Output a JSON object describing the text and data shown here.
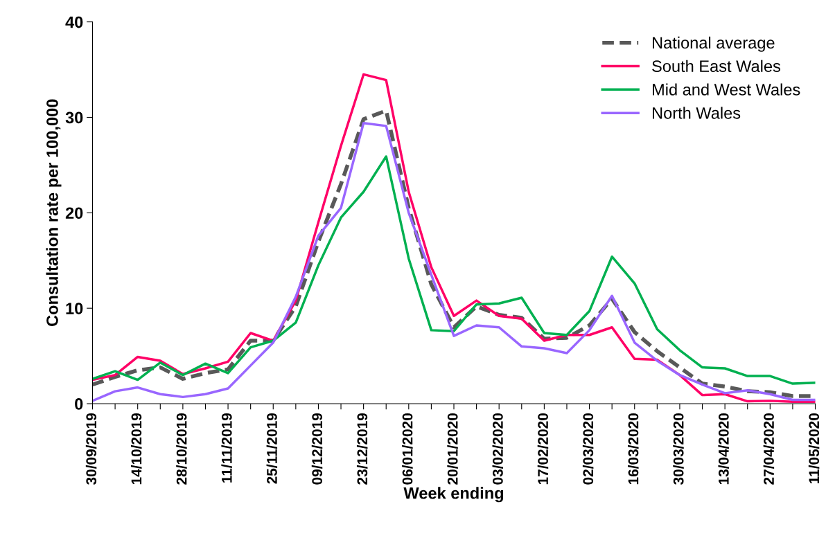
{
  "chart_data": {
    "type": "line",
    "xlabel": "Week ending",
    "ylabel": "Consultation rate per 100,000",
    "categories": [
      "30/09/2019",
      null,
      "14/10/2019",
      null,
      "28/10/2019",
      null,
      "11/11/2019",
      null,
      "25/11/2019",
      null,
      "09/12/2019",
      null,
      "23/12/2019",
      null,
      "06/01/2020",
      null,
      "20/01/2020",
      null,
      "03/02/2020",
      null,
      "17/02/2020",
      null,
      "02/03/2020",
      null,
      "16/03/2020",
      null,
      "30/03/2020",
      null,
      "13/04/2020",
      null,
      "27/04/2020",
      null,
      "11/05/2020"
    ],
    "series": [
      {
        "name": "National average",
        "color": "#595959",
        "line_style": "dashed",
        "values": [
          2.0,
          2.8,
          3.5,
          3.8,
          2.6,
          3.2,
          3.6,
          6.6,
          6.6,
          10.2,
          17,
          23,
          29.8,
          30.7,
          20.5,
          12.5,
          8,
          10.2,
          9.3,
          9,
          6.8,
          6.9,
          8.2,
          11,
          7.5,
          5.5,
          3.8,
          2.1,
          1.8,
          1.3,
          1.2,
          0.8,
          0.8
        ]
      },
      {
        "name": "South East Wales",
        "color": "#ff0066",
        "line_style": "solid",
        "values": [
          2.5,
          3.0,
          4.9,
          4.5,
          3.1,
          3.7,
          4.4,
          7.4,
          6.6,
          10.8,
          19,
          27,
          34.5,
          33.9,
          22.2,
          14.3,
          9.2,
          10.8,
          9.2,
          8.9,
          6.6,
          7.2,
          7.2,
          8.0,
          4.7,
          4.6,
          3.0,
          0.9,
          1.0,
          0.25,
          0.3,
          0.2,
          0.2
        ]
      },
      {
        "name": "Mid and West Wales",
        "color": "#00b050",
        "line_style": "solid",
        "values": [
          2.6,
          3.4,
          2.5,
          4.3,
          3.0,
          4.2,
          3.2,
          5.9,
          6.6,
          8.5,
          14.5,
          19.5,
          22.2,
          25.9,
          15.2,
          7.7,
          7.6,
          10.4,
          10.5,
          11.1,
          7.4,
          7.2,
          9.7,
          15.4,
          12.6,
          7.8,
          5.6,
          3.8,
          3.7,
          2.9,
          2.9,
          2.1,
          2.2
        ]
      },
      {
        "name": "North Wales",
        "color": "#9966ff",
        "line_style": "solid",
        "values": [
          0.3,
          1.3,
          1.7,
          1.0,
          0.7,
          1.0,
          1.6,
          4.0,
          6.4,
          11.2,
          17.6,
          20.5,
          29.4,
          29.1,
          20.0,
          13.5,
          7.1,
          8.2,
          8.0,
          6.0,
          5.8,
          5.3,
          7.7,
          11.3,
          6.4,
          4.5,
          3.0,
          2.0,
          1.1,
          1.4,
          1.0,
          0.4,
          0.4
        ]
      }
    ],
    "ylim": [
      0,
      40
    ],
    "yticks": [
      0,
      10,
      20,
      30,
      40
    ],
    "grid": false,
    "legend": "top right",
    "marker": "none"
  }
}
